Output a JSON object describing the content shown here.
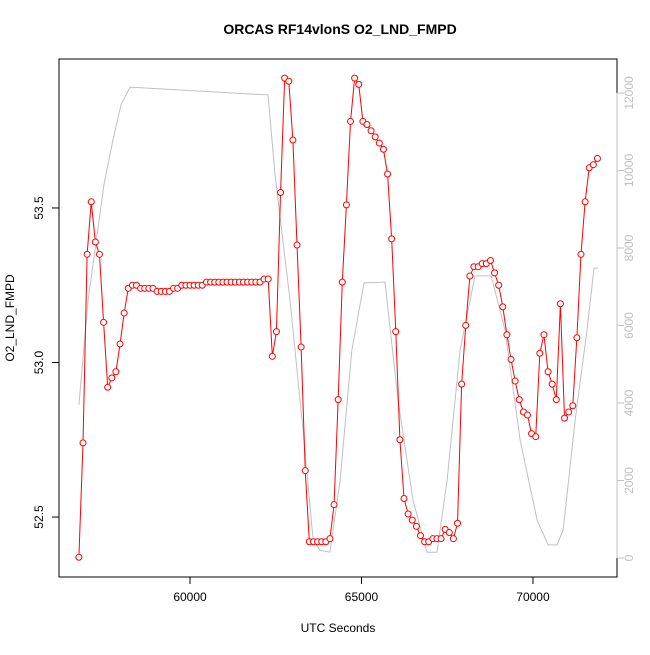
{
  "chart_data": {
    "type": "line",
    "title": "ORCAS RF14vlonS O2_LND_FMPD",
    "x_label": "UTC Seconds",
    "y_label": "O2_LND_FMPD",
    "xlim": [
      56180,
      72450
    ],
    "xticks": [
      60000,
      65000,
      70000
    ],
    "ylim": [
      52.306,
      53.982
    ],
    "yticks": [
      52.5,
      {
        "value": 53,
        "label": "53.0"
      },
      53.5
    ],
    "y2lim": [
      -490,
      12877
    ],
    "y2ticks": [
      0,
      2000,
      4000,
      6000,
      8000,
      10000,
      12000
    ],
    "series": [
      {
        "color": "#ff0000",
        "markers": true,
        "x": [
          56760,
          56880,
          57000,
          57120,
          57240,
          57360,
          57480,
          57600,
          57720,
          57840,
          57960,
          58080,
          58200,
          58320,
          58440,
          58560,
          58680,
          58800,
          58920,
          59040,
          59160,
          59280,
          59400,
          59520,
          59640,
          59760,
          59880,
          60000,
          60120,
          60240,
          60360,
          60480,
          60600,
          60720,
          60840,
          60960,
          61080,
          61200,
          61320,
          61440,
          61560,
          61680,
          61800,
          61920,
          62040,
          62160,
          62280,
          62400,
          62520,
          62640,
          62760,
          62880,
          63000,
          63120,
          63240,
          63360,
          63480,
          63600,
          63720,
          63840,
          63960,
          64080,
          64200,
          64320,
          64440,
          64560,
          64680,
          64800,
          64920,
          65040,
          65160,
          65280,
          65400,
          65520,
          65640,
          65760,
          65880,
          66000,
          66120,
          66240,
          66360,
          66480,
          66600,
          66720,
          66840,
          66960,
          67080,
          67200,
          67320,
          67440,
          67560,
          67680,
          67800,
          67920,
          68040,
          68160,
          68280,
          68400,
          68520,
          68640,
          68760,
          68880,
          69000,
          69120,
          69240,
          69360,
          69480,
          69600,
          69720,
          69840,
          69960,
          70080,
          70200,
          70320,
          70440,
          70560,
          70680,
          70800,
          70920,
          71040,
          71160,
          71280,
          71400,
          71520,
          71640,
          71760,
          71880
        ],
        "values": [
          52.37,
          52.74,
          53.35,
          53.52,
          53.39,
          53.35,
          53.13,
          52.92,
          52.95,
          52.97,
          53.06,
          53.16,
          53.24,
          53.25,
          53.25,
          53.24,
          53.24,
          53.24,
          53.24,
          53.23,
          53.23,
          53.23,
          53.23,
          53.24,
          53.24,
          53.25,
          53.25,
          53.25,
          53.25,
          53.25,
          53.25,
          53.26,
          53.26,
          53.26,
          53.26,
          53.26,
          53.26,
          53.26,
          53.26,
          53.26,
          53.26,
          53.26,
          53.26,
          53.26,
          53.26,
          53.27,
          53.27,
          53.02,
          53.1,
          53.55,
          53.92,
          53.91,
          53.72,
          53.38,
          53.05,
          52.65,
          52.42,
          52.42,
          52.42,
          52.42,
          52.42,
          52.43,
          52.54,
          52.88,
          53.26,
          53.51,
          53.78,
          53.92,
          53.9,
          53.78,
          53.77,
          53.75,
          53.73,
          53.71,
          53.69,
          53.61,
          53.4,
          53.1,
          52.75,
          52.56,
          52.51,
          52.49,
          52.47,
          52.44,
          52.42,
          52.42,
          52.43,
          52.43,
          52.43,
          52.46,
          52.45,
          52.43,
          52.48,
          52.93,
          53.12,
          53.28,
          53.31,
          53.31,
          53.32,
          53.32,
          53.33,
          53.29,
          53.25,
          53.18,
          53.09,
          53.01,
          52.94,
          52.88,
          52.84,
          52.83,
          52.77,
          52.76,
          53.03,
          53.09,
          52.97,
          52.93,
          52.88,
          53.19,
          52.82,
          52.84,
          52.86,
          53.08,
          53.35,
          53.52,
          53.63,
          53.64,
          53.66
        ]
      },
      {
        "color": "#c0c0c0",
        "axis": "y2",
        "markers": false,
        "x": [
          56760,
          57030,
          57490,
          57755,
          57990,
          58250,
          62275,
          62480,
          62915,
          63295,
          63590,
          63790,
          64080,
          64375,
          64720,
          65075,
          65685,
          66065,
          66500,
          66910,
          67200,
          67495,
          67875,
          68310,
          68780,
          69185,
          69625,
          70120,
          70440,
          70700,
          70880,
          71230,
          71575,
          71780,
          71900
        ],
        "values": [
          3950,
          6660,
          9630,
          10800,
          11700,
          12150,
          11950,
          9880,
          6660,
          3300,
          460,
          200,
          150,
          2000,
          5370,
          7100,
          7120,
          4080,
          1500,
          150,
          150,
          2000,
          5370,
          7280,
          7280,
          5880,
          3050,
          980,
          340,
          340,
          720,
          3560,
          5880,
          7480,
          7480
        ]
      }
    ]
  }
}
